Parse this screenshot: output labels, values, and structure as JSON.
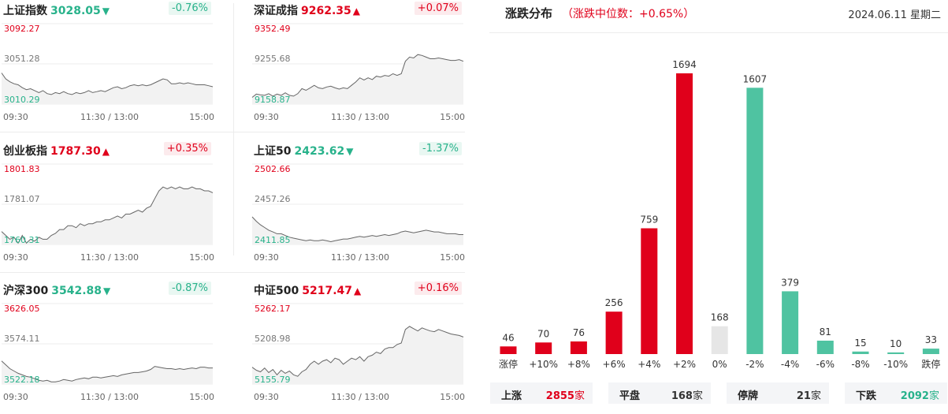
{
  "indices": [
    {
      "name": "上证指数",
      "price": "3028.05",
      "arrow": "▼",
      "direction": "down",
      "change": "-0.76%",
      "y_top": "3092.27",
      "y_mid": "3051.28",
      "y_bottom": "3010.29",
      "time_start": "09:30",
      "time_mid": "11:30 / 13:00",
      "time_end": "15:00",
      "chart_data": {
        "type": "line",
        "ylim": [
          3010.29,
          3092.27
        ],
        "y": [
          3042,
          3036,
          3033,
          3031,
          3030,
          3027,
          3025,
          3026,
          3024,
          3022,
          3024,
          3021,
          3020,
          3022,
          3021,
          3023,
          3021,
          3020,
          3022,
          3021,
          3022,
          3024,
          3022,
          3023,
          3024,
          3023,
          3025,
          3027,
          3028,
          3026,
          3027,
          3029,
          3030,
          3029,
          3030,
          3029,
          3030,
          3032,
          3034,
          3036,
          3035,
          3031,
          3031,
          3032,
          3031,
          3032,
          3031,
          3030,
          3030,
          3030,
          3029,
          3028
        ]
      }
    },
    {
      "name": "深证成指",
      "price": "9262.35",
      "arrow": "▲",
      "direction": "up",
      "change": "+0.07%",
      "y_top": "9352.49",
      "y_mid": "9255.68",
      "y_bottom": "9158.87",
      "time_start": "09:30",
      "time_mid": "11:30 / 13:00",
      "time_end": "15:00",
      "chart_data": {
        "type": "line",
        "ylim": [
          9158.87,
          9352.49
        ],
        "y": [
          9175,
          9183,
          9181,
          9180,
          9184,
          9178,
          9183,
          9180,
          9186,
          9180,
          9178,
          9184,
          9196,
          9192,
          9198,
          9204,
          9198,
          9196,
          9200,
          9202,
          9198,
          9195,
          9198,
          9196,
          9204,
          9212,
          9222,
          9217,
          9222,
          9218,
          9226,
          9224,
          9228,
          9226,
          9232,
          9228,
          9232,
          9262,
          9272,
          9270,
          9278,
          9276,
          9272,
          9268,
          9268,
          9270,
          9268,
          9266,
          9264,
          9264,
          9266,
          9262
        ]
      }
    },
    {
      "name": "创业板指",
      "price": "1787.30",
      "arrow": "▲",
      "direction": "up",
      "change": "+0.35%",
      "y_top": "1801.83",
      "y_mid": "1781.07",
      "y_bottom": "1760.31",
      "time_start": "09:30",
      "time_mid": "11:30 / 13:00",
      "time_end": "15:00",
      "chart_data": {
        "type": "line",
        "ylim": [
          1760.31,
          1801.83
        ],
        "y": [
          1767,
          1765,
          1763,
          1764,
          1761,
          1765,
          1761,
          1763,
          1762,
          1764,
          1763,
          1763,
          1765,
          1766,
          1768,
          1768,
          1770,
          1770,
          1769,
          1771,
          1770,
          1771,
          1771,
          1772,
          1772,
          1773,
          1773,
          1774,
          1775,
          1774,
          1776,
          1776,
          1777,
          1778,
          1777,
          1779,
          1780,
          1784,
          1788,
          1790,
          1789,
          1790,
          1789,
          1790,
          1789,
          1789,
          1790,
          1789,
          1789,
          1788,
          1788,
          1787
        ]
      }
    },
    {
      "name": "上证50",
      "price": "2423.62",
      "arrow": "▼",
      "direction": "down",
      "change": "-1.37%",
      "y_top": "2502.66",
      "y_mid": "2457.26",
      "y_bottom": "2411.85",
      "time_start": "09:30",
      "time_mid": "11:30 / 13:00",
      "time_end": "15:00",
      "chart_data": {
        "type": "line",
        "ylim": [
          2411.85,
          2502.66
        ],
        "y": [
          2443,
          2438,
          2434,
          2431,
          2428,
          2426,
          2424,
          2424,
          2422,
          2420,
          2419,
          2418,
          2417,
          2416,
          2417,
          2416,
          2416,
          2417,
          2416,
          2415,
          2416,
          2417,
          2418,
          2418,
          2419,
          2420,
          2421,
          2420,
          2421,
          2422,
          2421,
          2422,
          2423,
          2422,
          2423,
          2424,
          2426,
          2427,
          2426,
          2425,
          2426,
          2427,
          2428,
          2427,
          2426,
          2426,
          2425,
          2424,
          2424,
          2424,
          2423,
          2423
        ]
      }
    },
    {
      "name": "沪深300",
      "price": "3542.88",
      "arrow": "▼",
      "direction": "down",
      "change": "-0.87%",
      "y_top": "3626.05",
      "y_mid": "3574.11",
      "y_bottom": "3522.18",
      "time_start": "09:30",
      "time_mid": "11:30 / 13:00",
      "time_end": "15:00",
      "chart_data": {
        "type": "line",
        "ylim": [
          3522.18,
          3626.05
        ],
        "y": [
          3552,
          3547,
          3542,
          3539,
          3536,
          3534,
          3532,
          3531,
          3529,
          3527,
          3526,
          3527,
          3525,
          3525,
          3526,
          3528,
          3527,
          3526,
          3528,
          3529,
          3530,
          3529,
          3531,
          3531,
          3530,
          3531,
          3532,
          3533,
          3532,
          3534,
          3535,
          3536,
          3537,
          3537,
          3538,
          3539,
          3541,
          3545,
          3544,
          3543,
          3542,
          3542,
          3541,
          3542,
          3541,
          3542,
          3543,
          3542,
          3544,
          3544,
          3543,
          3543
        ]
      }
    },
    {
      "name": "中证500",
      "price": "5217.47",
      "arrow": "▲",
      "direction": "up",
      "change": "+0.16%",
      "y_top": "5262.17",
      "y_mid": "5208.98",
      "y_bottom": "5155.79",
      "time_start": "09:30",
      "time_mid": "11:30 / 13:00",
      "time_end": "15:00",
      "chart_data": {
        "type": "line",
        "ylim": [
          5155.79,
          5262.17
        ],
        "y": [
          5178,
          5174,
          5172,
          5177,
          5171,
          5175,
          5168,
          5174,
          5170,
          5173,
          5168,
          5166,
          5172,
          5175,
          5182,
          5186,
          5182,
          5186,
          5188,
          5184,
          5190,
          5188,
          5182,
          5186,
          5190,
          5188,
          5192,
          5186,
          5192,
          5194,
          5198,
          5196,
          5202,
          5204,
          5204,
          5208,
          5210,
          5228,
          5232,
          5229,
          5226,
          5230,
          5228,
          5226,
          5225,
          5228,
          5226,
          5224,
          5222,
          5221,
          5220,
          5218
        ]
      }
    }
  ],
  "distribution": {
    "title": "涨跌分布",
    "median": "（涨跌中位数：+0.65%）",
    "date": "2024.06.11 星期二",
    "colors": {
      "up": "#e0001b",
      "down": "#4fc3a1",
      "flat": "#e6e6e6"
    },
    "chart_data": {
      "type": "bar",
      "categories": [
        "涨停",
        "+10%",
        "+8%",
        "+6%",
        "+4%",
        "+2%",
        "0%",
        "-2%",
        "-4%",
        "-6%",
        "-8%",
        "-10%",
        "跌停"
      ],
      "values": [
        46,
        70,
        76,
        256,
        759,
        1694,
        168,
        1607,
        379,
        81,
        15,
        10,
        33
      ],
      "kind": [
        "up",
        "up",
        "up",
        "up",
        "up",
        "up",
        "flat",
        "down",
        "down",
        "down",
        "down",
        "down",
        "down"
      ],
      "ylim": [
        0,
        1694
      ]
    }
  },
  "summary": [
    {
      "label": "上涨",
      "value": "2855",
      "unit": "家",
      "color": "#e0001b"
    },
    {
      "label": "平盘",
      "value": "168",
      "unit": "家",
      "color": "#333333"
    },
    {
      "label": "停牌",
      "value": "21",
      "unit": "家",
      "color": "#333333"
    },
    {
      "label": "下跌",
      "value": "2092",
      "unit": "家",
      "color": "#28b28b"
    }
  ]
}
